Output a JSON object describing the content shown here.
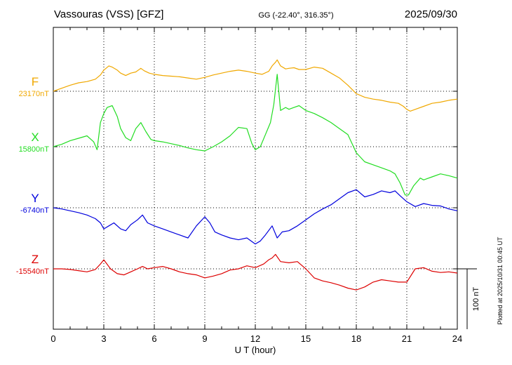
{
  "header": {
    "station": "Vassouras (VSS)  [GFZ]",
    "coords": "GG (-22.40°, 316.35°)",
    "date": "2025/09/30"
  },
  "footer_note": "Plotted at 2025/10/31 00:45 UT",
  "scale_bar_label": "100 nT",
  "chart_data": {
    "type": "line",
    "title": "Vassouras (VSS)  [GFZ]",
    "xlabel": "U T (hour)",
    "xlim": [
      0,
      24
    ],
    "xticks": [
      0,
      3,
      6,
      9,
      12,
      15,
      18,
      21,
      24
    ],
    "grid": true,
    "scale_bar_nT": 100,
    "series": [
      {
        "name": "F",
        "baseline_label": "23170nT",
        "baseline": 23170,
        "color": "#f0a800",
        "x": [
          0,
          0.5,
          1,
          1.5,
          2,
          2.5,
          2.8,
          3.0,
          3.3,
          3.5,
          3.8,
          4.0,
          4.3,
          4.6,
          4.9,
          5.2,
          5.4,
          5.7,
          6.0,
          6.5,
          7,
          7.5,
          8,
          8.5,
          9,
          9.5,
          10,
          10.5,
          11,
          11.5,
          12,
          12.4,
          12.8,
          13.0,
          13.2,
          13.3,
          13.5,
          13.8,
          14,
          14.3,
          14.6,
          15,
          15.5,
          16,
          16.5,
          17,
          17.5,
          18,
          18.5,
          19,
          19.5,
          20,
          20.5,
          20.8,
          21.0,
          21.2,
          21.5,
          22,
          22.5,
          23,
          23.5,
          24
        ],
        "y": [
          23170,
          23175,
          23180,
          23184,
          23186,
          23190,
          23197,
          23205,
          23212,
          23210,
          23205,
          23200,
          23196,
          23200,
          23202,
          23208,
          23204,
          23200,
          23198,
          23196,
          23195,
          23194,
          23192,
          23190,
          23193,
          23197,
          23200,
          23203,
          23205,
          23203,
          23200,
          23198,
          23203,
          23212,
          23218,
          23222,
          23212,
          23207,
          23208,
          23209,
          23206,
          23206,
          23210,
          23208,
          23200,
          23192,
          23180,
          23166,
          23160,
          23157,
          23155,
          23152,
          23150,
          23145,
          23140,
          23137,
          23140,
          23145,
          23150,
          23152,
          23155,
          23157
        ]
      },
      {
        "name": "X",
        "baseline_label": "15800nT",
        "baseline": 15800,
        "color": "#22dd22",
        "x": [
          0,
          0.5,
          1,
          1.5,
          2,
          2.4,
          2.6,
          2.8,
          3.0,
          3.2,
          3.5,
          3.8,
          4.0,
          4.3,
          4.6,
          4.9,
          5.2,
          5.5,
          5.8,
          6,
          6.5,
          7,
          7.5,
          8,
          8.5,
          9,
          9.5,
          10,
          10.5,
          11,
          11.5,
          11.8,
          12,
          12.3,
          12.6,
          12.9,
          13.1,
          13.3,
          13.5,
          13.8,
          14,
          14.3,
          14.6,
          15,
          15.5,
          16,
          16.5,
          17,
          17.5,
          18,
          18.5,
          19,
          19.5,
          20,
          20.3,
          20.6,
          20.9,
          21.1,
          21.4,
          21.8,
          22,
          22.5,
          23,
          23.5,
          24
        ],
        "y": [
          15800,
          15804,
          15810,
          15814,
          15818,
          15808,
          15795,
          15840,
          15855,
          15865,
          15868,
          15850,
          15830,
          15815,
          15810,
          15830,
          15840,
          15825,
          15812,
          15810,
          15808,
          15805,
          15802,
          15798,
          15795,
          15793,
          15800,
          15808,
          15818,
          15832,
          15830,
          15805,
          15795,
          15800,
          15820,
          15840,
          15870,
          15920,
          15860,
          15865,
          15862,
          15865,
          15868,
          15860,
          15855,
          15848,
          15840,
          15830,
          15820,
          15790,
          15775,
          15770,
          15765,
          15760,
          15755,
          15740,
          15720,
          15720,
          15735,
          15748,
          15745,
          15750,
          15755,
          15752,
          15748
        ]
      },
      {
        "name": "Y",
        "baseline_label": "-6740nT",
        "baseline": -6740,
        "color": "#0000dd",
        "x": [
          0,
          0.5,
          1,
          1.5,
          2,
          2.5,
          2.8,
          3.0,
          3.3,
          3.6,
          4.0,
          4.3,
          4.6,
          5.0,
          5.3,
          5.6,
          6,
          6.5,
          7,
          7.5,
          8,
          8.5,
          9,
          9.3,
          9.6,
          10,
          10.5,
          11,
          11.5,
          12,
          12.3,
          12.6,
          13.0,
          13.3,
          13.6,
          14,
          14.5,
          15,
          15.5,
          16,
          16.5,
          17,
          17.5,
          18,
          18.5,
          19,
          19.5,
          20,
          20.3,
          20.6,
          21,
          21.5,
          22,
          22.5,
          23,
          23.5,
          24
        ],
        "y": [
          -6740,
          -6742,
          -6745,
          -6748,
          -6752,
          -6758,
          -6765,
          -6775,
          -6770,
          -6765,
          -6775,
          -6778,
          -6768,
          -6760,
          -6752,
          -6765,
          -6770,
          -6775,
          -6780,
          -6785,
          -6790,
          -6770,
          -6755,
          -6765,
          -6780,
          -6785,
          -6790,
          -6793,
          -6790,
          -6800,
          -6795,
          -6785,
          -6770,
          -6790,
          -6780,
          -6778,
          -6770,
          -6760,
          -6750,
          -6742,
          -6735,
          -6725,
          -6715,
          -6710,
          -6722,
          -6718,
          -6712,
          -6715,
          -6712,
          -6720,
          -6730,
          -6738,
          -6733,
          -6736,
          -6737,
          -6742,
          -6745
        ]
      },
      {
        "name": "Z",
        "baseline_label": "-15540nT",
        "baseline": -15540,
        "color": "#dd0000",
        "x": [
          0,
          0.5,
          1,
          1.5,
          2,
          2.5,
          2.8,
          3.0,
          3.4,
          3.8,
          4.2,
          4.6,
          5.0,
          5.3,
          5.6,
          6,
          6.5,
          7,
          7.5,
          8,
          8.5,
          9,
          9.5,
          10,
          10.5,
          11,
          11.5,
          12,
          12.5,
          12.8,
          13.0,
          13.2,
          13.5,
          14,
          14.5,
          15,
          15.5,
          16,
          16.5,
          17,
          17.5,
          18,
          18.5,
          19,
          19.5,
          20,
          20.5,
          21,
          21.5,
          22,
          22.5,
          23,
          23.5,
          24
        ],
        "y": [
          -15540,
          -15540,
          -15541,
          -15543,
          -15545,
          -15541,
          -15532,
          -15525,
          -15540,
          -15548,
          -15550,
          -15545,
          -15540,
          -15536,
          -15540,
          -15538,
          -15536,
          -15540,
          -15545,
          -15548,
          -15550,
          -15555,
          -15552,
          -15548,
          -15542,
          -15540,
          -15535,
          -15538,
          -15532,
          -15525,
          -15522,
          -15516,
          -15528,
          -15530,
          -15528,
          -15540,
          -15555,
          -15560,
          -15563,
          -15567,
          -15572,
          -15575,
          -15570,
          -15562,
          -15558,
          -15560,
          -15562,
          -15562,
          -15540,
          -15538,
          -15544,
          -15546,
          -15545,
          -15547
        ]
      }
    ]
  }
}
